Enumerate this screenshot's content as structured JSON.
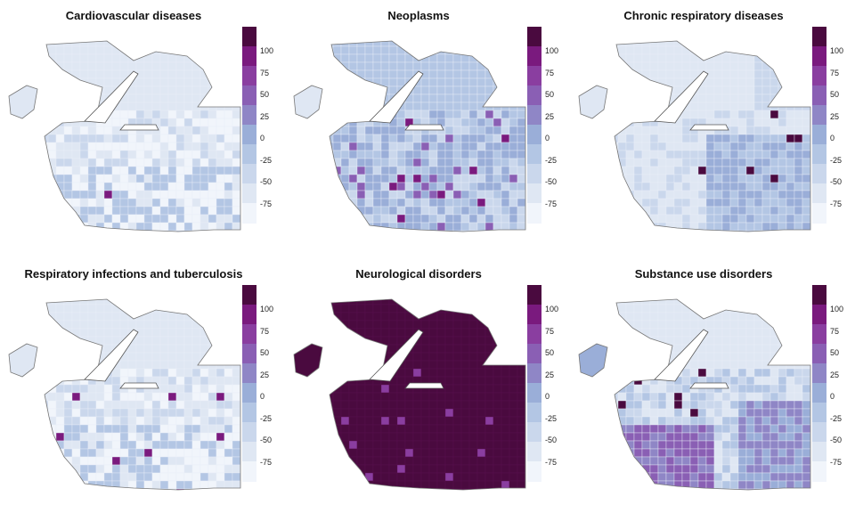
{
  "palette": [
    "#f1f5fb",
    "#dfe7f3",
    "#cad7ec",
    "#b3c6e4",
    "#9aaed8",
    "#8f86c6",
    "#8a5fb4",
    "#8a3ea0",
    "#7a1a7e",
    "#4a0a3f"
  ],
  "legend_ticks": [
    "100",
    "75",
    "50",
    "25",
    "0",
    "-25",
    "-50",
    "-75"
  ],
  "panels": [
    {
      "title": "Cardiovascular diseases",
      "theme": "light"
    },
    {
      "title": "Neoplasms",
      "theme": "mixed"
    },
    {
      "title": "Chronic respiratory diseases",
      "theme": "light-hot"
    },
    {
      "title": "Respiratory infections and tuberculosis",
      "theme": "light"
    },
    {
      "title": "Neurological disorders",
      "theme": "dark"
    },
    {
      "title": "Substance use disorders",
      "theme": "purple-south"
    }
  ]
}
